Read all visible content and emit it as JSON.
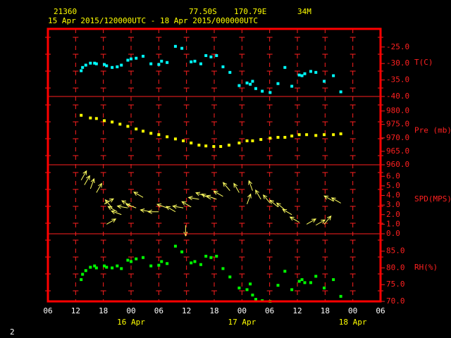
{
  "header": {
    "station": "21360",
    "latitude": "77.50S",
    "longitude": "170.79E",
    "elevation": "34M",
    "period": "15 Apr 2015/120000UTC - 18 Apr 2015/000000UTC",
    "footer": "2"
  },
  "chart_data": [
    {
      "type": "scatter",
      "ylabel": "T(C)",
      "color": "#00ffff",
      "x": [
        7.2,
        7.5,
        8.2,
        9.2,
        10.1,
        10.5,
        12.2,
        12.7,
        13.9,
        15.0,
        15.9,
        17.3,
        18.0,
        19.1,
        20.6,
        22.3,
        24.0,
        24.6,
        25.8,
        27.6,
        29.0,
        31.0,
        31.8,
        33.1,
        34.2,
        35.3,
        36.5,
        37.9,
        39.4,
        41.4,
        43.1,
        43.8,
        44.3,
        45.0,
        46.4,
        48.1,
        49.8,
        51.3,
        52.8,
        54.4,
        55.0,
        55.6,
        56.9,
        58.0,
        59.8,
        61.8,
        63.4
      ],
      "values": [
        -32.2,
        -31.2,
        -30.5,
        -29.9,
        -29.9,
        -30.1,
        -30.3,
        -30.7,
        -31.2,
        -31.0,
        -30.5,
        -29.0,
        -28.6,
        -28.4,
        -27.8,
        -30.1,
        -30.3,
        -29.3,
        -29.7,
        -24.8,
        -25.4,
        -29.5,
        -29.3,
        -30.1,
        -27.6,
        -28.0,
        -27.6,
        -31.0,
        -32.7,
        -36.7,
        -35.9,
        -36.3,
        -35.4,
        -37.6,
        -38.4,
        -38.8,
        -36.1,
        -31.2,
        -36.9,
        -33.5,
        -33.7,
        -33.1,
        -32.4,
        -32.7,
        -35.4,
        -33.7,
        -38.6
      ],
      "ylim": [
        -40,
        -19.5
      ],
      "yticks": [
        {
          "value": -25,
          "label": "-25.0"
        },
        {
          "value": -30,
          "label": "-30.0"
        },
        {
          "value": -35,
          "label": "-35.0"
        },
        {
          "value": -40,
          "label": "-40.0"
        }
      ]
    },
    {
      "type": "scatter",
      "ylabel": "Pre (mb)",
      "color": "#ffff00",
      "x": [
        7.2,
        9.2,
        10.5,
        12.2,
        13.9,
        15.6,
        17.3,
        19.1,
        20.6,
        22.3,
        24.0,
        25.8,
        27.6,
        29.3,
        31.0,
        32.7,
        34.2,
        35.9,
        37.4,
        39.2,
        41.4,
        43.1,
        44.3,
        46.1,
        48.1,
        49.8,
        51.3,
        52.8,
        54.4,
        56.0,
        58.0,
        59.8,
        61.8,
        63.4
      ],
      "values": [
        978.4,
        977.4,
        977.2,
        976.4,
        975.9,
        975.1,
        974.3,
        973.3,
        972.5,
        971.7,
        971.2,
        970.4,
        969.6,
        968.9,
        968.1,
        967.3,
        967.0,
        966.8,
        966.8,
        967.3,
        968.1,
        968.9,
        968.9,
        969.4,
        969.9,
        970.2,
        970.2,
        970.7,
        971.2,
        971.2,
        970.9,
        971.2,
        971.2,
        971.5
      ],
      "ylim": [
        960,
        985.4
      ],
      "yticks": [
        {
          "value": 980,
          "label": "980.0"
        },
        {
          "value": 975,
          "label": "975.0"
        },
        {
          "value": 970,
          "label": "970.0"
        },
        {
          "value": 965,
          "label": "965.0"
        },
        {
          "value": 960,
          "label": "960.0"
        }
      ]
    },
    {
      "type": "vector",
      "ylabel": "SPD(MPS)",
      "color": "#ffff60",
      "x": [
        7.2,
        7.9,
        9.2,
        10.5,
        12.2,
        12.7,
        13.9,
        15.0,
        15.9,
        17.3,
        18.0,
        19.1,
        20.6,
        22.3,
        24.0,
        25.8,
        27.6,
        29.3,
        29.8,
        31.0,
        32.7,
        34.2,
        35.3,
        36.5,
        37.9,
        39.4,
        41.4,
        43.1,
        44.3,
        46.1,
        48.1,
        49.8,
        51.3,
        52.8,
        54.4,
        56.0,
        58.0,
        59.8,
        61.8,
        63.4
      ],
      "values": [
        5.6,
        5.1,
        4.7,
        4.3,
        3.1,
        1.0,
        2.7,
        2.3,
        2.0,
        2.7,
        2.9,
        2.7,
        3.8,
        2.3,
        2.3,
        2.7,
        2.3,
        2.7,
        0.9,
        2.8,
        3.6,
        3.9,
        3.6,
        3.6,
        3.9,
        4.5,
        4.3,
        3.1,
        4.5,
        3.6,
        3.2,
        2.8,
        2.5,
        2.0,
        1.2,
        1.0,
        0.9,
        1.0,
        3.4,
        3.2
      ],
      "directions": [
        30,
        30,
        20,
        30,
        60,
        60,
        320,
        300,
        290,
        280,
        300,
        290,
        300,
        280,
        270,
        290,
        300,
        280,
        180,
        300,
        280,
        290,
        300,
        290,
        300,
        320,
        330,
        20,
        340,
        330,
        320,
        310,
        310,
        300,
        300,
        60,
        60,
        40,
        300,
        300
      ],
      "ylim": [
        0,
        7.2
      ],
      "yticks": [
        {
          "value": 6,
          "label": "6.0"
        },
        {
          "value": 5,
          "label": "5.0"
        },
        {
          "value": 4,
          "label": "4.0"
        },
        {
          "value": 3,
          "label": "3.0"
        },
        {
          "value": 2,
          "label": "2.0"
        },
        {
          "value": 1,
          "label": "1.0"
        },
        {
          "value": 0,
          "label": "0.0"
        }
      ]
    },
    {
      "type": "scatter",
      "ylabel": "RH(%)",
      "color": "#00ff00",
      "x": [
        7.2,
        7.5,
        8.2,
        9.2,
        10.1,
        10.5,
        12.2,
        12.7,
        13.9,
        15.0,
        15.9,
        17.3,
        18.0,
        19.1,
        20.6,
        22.3,
        24.0,
        24.6,
        25.8,
        27.6,
        29.0,
        31.0,
        31.8,
        33.1,
        34.2,
        35.3,
        36.5,
        37.9,
        39.4,
        41.4,
        43.1,
        43.8,
        44.3,
        45.0,
        46.4,
        48.1,
        49.8,
        51.3,
        52.8,
        54.4,
        55.0,
        55.6,
        56.9,
        58.0,
        59.8,
        61.8,
        63.4
      ],
      "values": [
        76.5,
        78.1,
        79.2,
        80.2,
        80.6,
        80.0,
        80.6,
        80.2,
        80.0,
        80.6,
        79.8,
        82.3,
        81.9,
        82.7,
        83.1,
        80.6,
        80.8,
        81.9,
        81.3,
        86.5,
        84.8,
        81.5,
        81.9,
        81.0,
        83.5,
        83.1,
        83.5,
        79.8,
        77.3,
        74.0,
        73.5,
        75.2,
        71.9,
        70.6,
        70.2,
        70.0,
        74.8,
        79.0,
        73.5,
        76.0,
        76.5,
        75.6,
        75.6,
        77.5,
        74.0,
        76.5,
        71.5
      ],
      "ylim": [
        70,
        90.2
      ],
      "yticks": [
        {
          "value": 85,
          "label": "85.0"
        },
        {
          "value": 80,
          "label": "80.0"
        },
        {
          "value": 75,
          "label": "75.0"
        },
        {
          "value": 70,
          "label": "70.0"
        }
      ],
      "xlim": [
        0,
        72
      ],
      "xticks": [
        {
          "value": 0,
          "label": "06"
        },
        {
          "value": 6,
          "label": "12"
        },
        {
          "value": 12,
          "label": "18"
        },
        {
          "value": 18,
          "label": "00"
        },
        {
          "value": 24,
          "label": "06"
        },
        {
          "value": 30,
          "label": "12"
        },
        {
          "value": 36,
          "label": "18"
        },
        {
          "value": 42,
          "label": "00"
        },
        {
          "value": 48,
          "label": "06"
        },
        {
          "value": 54,
          "label": "12"
        },
        {
          "value": 60,
          "label": "18"
        },
        {
          "value": 66,
          "label": "00"
        },
        {
          "value": 72,
          "label": "06"
        }
      ],
      "day_labels": [
        {
          "value": 18,
          "label": "16 Apr"
        },
        {
          "value": 42,
          "label": "17 Apr"
        },
        {
          "value": 66,
          "label": "18 Apr"
        }
      ]
    }
  ]
}
